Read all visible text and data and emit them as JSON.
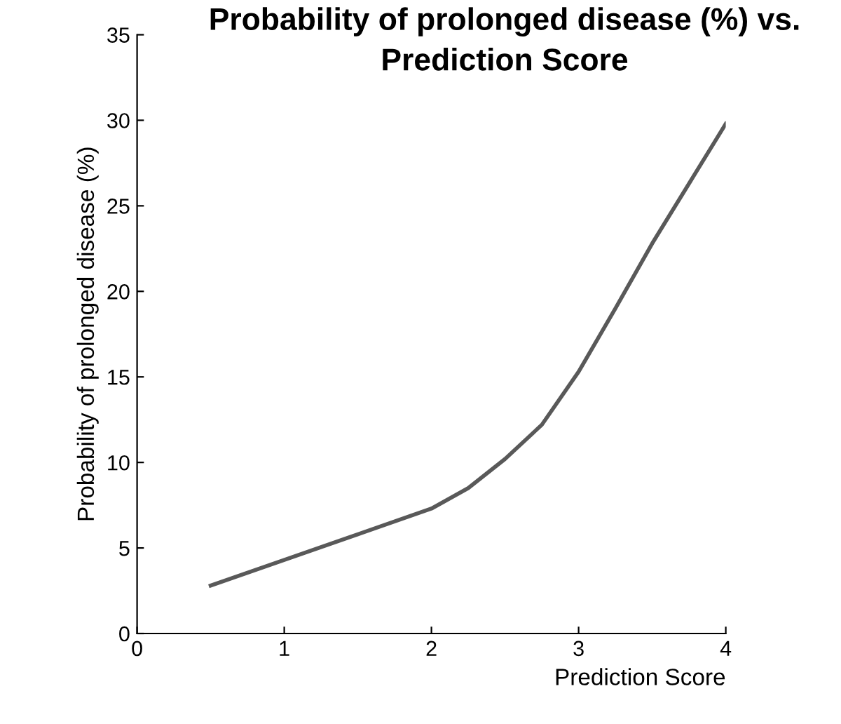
{
  "chart_data": {
    "type": "line",
    "title": "Probability of prolonged disease (%) vs.\nPrediction Score",
    "xlabel": "Prediction Score",
    "ylabel": "Probability of prolonged disease (%)",
    "series": [
      {
        "color": "#595959",
        "x": [
          0.5,
          1,
          1.5,
          2,
          2.25,
          2.5,
          2.75,
          3,
          3.25,
          3.5,
          3.75,
          4
        ],
        "values": [
          2.8,
          4.3,
          5.8,
          7.3,
          8.5,
          10.2,
          12.2,
          15.3,
          19.0,
          22.8,
          26.3,
          29.8
        ]
      }
    ],
    "xlim": [
      0,
      4
    ],
    "xticks": [
      0,
      1,
      2,
      3,
      4
    ],
    "ylim": [
      0,
      35
    ],
    "yticks": [
      0,
      5,
      10,
      15,
      20,
      25,
      30,
      35
    ],
    "grid": false,
    "legend": false,
    "marker": "none",
    "line_style": "solid"
  }
}
